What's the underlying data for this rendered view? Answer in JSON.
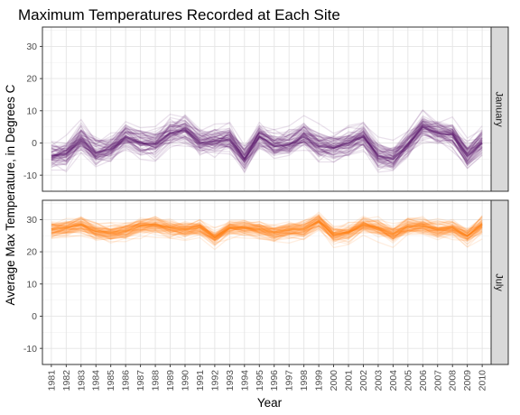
{
  "chart_data": {
    "type": "line",
    "title": "Maximum Temperatures Recorded at Each Site",
    "xlabel": "Year",
    "ylabel": "Average Max Temperature, in Degrees C",
    "x": [
      1981,
      1982,
      1983,
      1984,
      1985,
      1986,
      1987,
      1988,
      1989,
      1990,
      1991,
      1992,
      1993,
      1994,
      1995,
      1996,
      1997,
      1998,
      1999,
      2000,
      2001,
      2002,
      2003,
      2004,
      2005,
      2006,
      2007,
      2008,
      2009,
      2010
    ],
    "x_tick_labels": [
      "1981",
      "1982",
      "1983",
      "1984",
      "1985",
      "1986",
      "1987",
      "1988",
      "1989",
      "1990",
      "1991",
      "1992",
      "1993",
      "1994",
      "1995",
      "1996",
      "1997",
      "1998",
      "1999",
      "2000",
      "2001",
      "2002",
      "2003",
      "2004",
      "2005",
      "2006",
      "2007",
      "2008",
      "2009",
      "2010"
    ],
    "ylim": [
      -15,
      36
    ],
    "y_ticks": [
      -10,
      0,
      10,
      20,
      30
    ],
    "y_tick_labels": [
      "-10",
      "0",
      "10",
      "20",
      "30"
    ],
    "grid": true,
    "facets": [
      {
        "label": "January",
        "color": "#5b1a6e",
        "mean_values": [
          -4,
          -3.5,
          1,
          -3,
          -2,
          2,
          0,
          -0.5,
          3,
          4,
          0,
          0.5,
          1,
          -5,
          2,
          -1,
          -0.5,
          2,
          -1,
          -1.5,
          0,
          2,
          -4,
          -5,
          -0.5,
          5,
          3,
          2.5,
          -4,
          0
        ],
        "spread": 3.5
      },
      {
        "label": "July",
        "color": "#ff7f0e",
        "mean_values": [
          27,
          27.5,
          28.5,
          26.5,
          26,
          26.5,
          28,
          28.5,
          27.5,
          27,
          27.5,
          24.5,
          27.5,
          27.5,
          27,
          26,
          27,
          27,
          29.5,
          25.5,
          26,
          28.5,
          27.5,
          25.5,
          28,
          28,
          27,
          27.5,
          25,
          28.5
        ],
        "spread": 2.2
      }
    ]
  }
}
